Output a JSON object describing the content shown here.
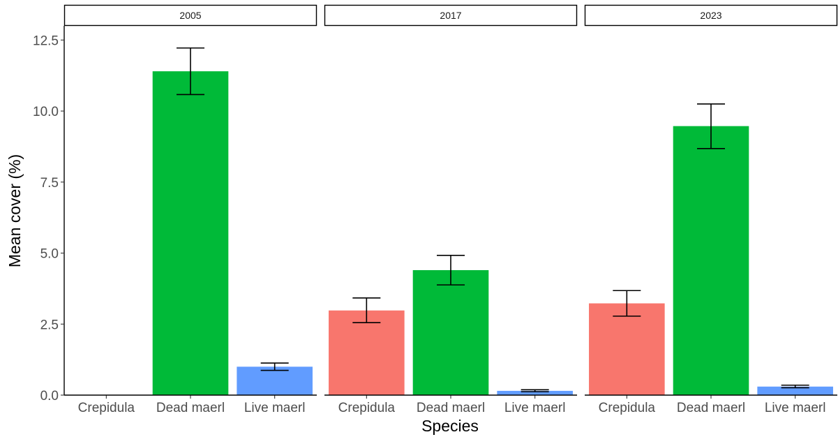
{
  "chart_data": {
    "type": "bar",
    "facet_by": "year",
    "panels": [
      {
        "strip": "2005",
        "categories": [
          "Crepidula",
          "Dead maerl",
          "Live maerl"
        ],
        "values": [
          0,
          11.4,
          1.0
        ],
        "error": [
          [
            0,
            0
          ],
          [
            10.58,
            12.22
          ],
          [
            0.87,
            1.13
          ]
        ]
      },
      {
        "strip": "2017",
        "categories": [
          "Crepidula",
          "Dead maerl",
          "Live maerl"
        ],
        "values": [
          2.98,
          4.4,
          0.15
        ],
        "error": [
          [
            2.55,
            3.42
          ],
          [
            3.88,
            4.92
          ],
          [
            0.12,
            0.19
          ]
        ]
      },
      {
        "strip": "2023",
        "categories": [
          "Crepidula",
          "Dead maerl",
          "Live maerl"
        ],
        "values": [
          3.23,
          9.47,
          0.3
        ],
        "error": [
          [
            2.78,
            3.68
          ],
          [
            8.68,
            10.25
          ],
          [
            0.26,
            0.35
          ]
        ]
      }
    ],
    "xlabel": "Species",
    "ylabel": "Mean cover (%)",
    "ylim": [
      0,
      13
    ],
    "yticks": [
      0,
      2.5,
      5,
      7.5,
      10,
      12.5
    ],
    "ytick_labels": [
      "0.0",
      "2.5",
      "5.0",
      "7.5",
      "10.0",
      "12.5"
    ],
    "grid": false,
    "legend": "none",
    "colors": {
      "Crepidula": "#F8766D",
      "Dead maerl": "#00BA38",
      "Live maerl": "#619CFF"
    }
  }
}
